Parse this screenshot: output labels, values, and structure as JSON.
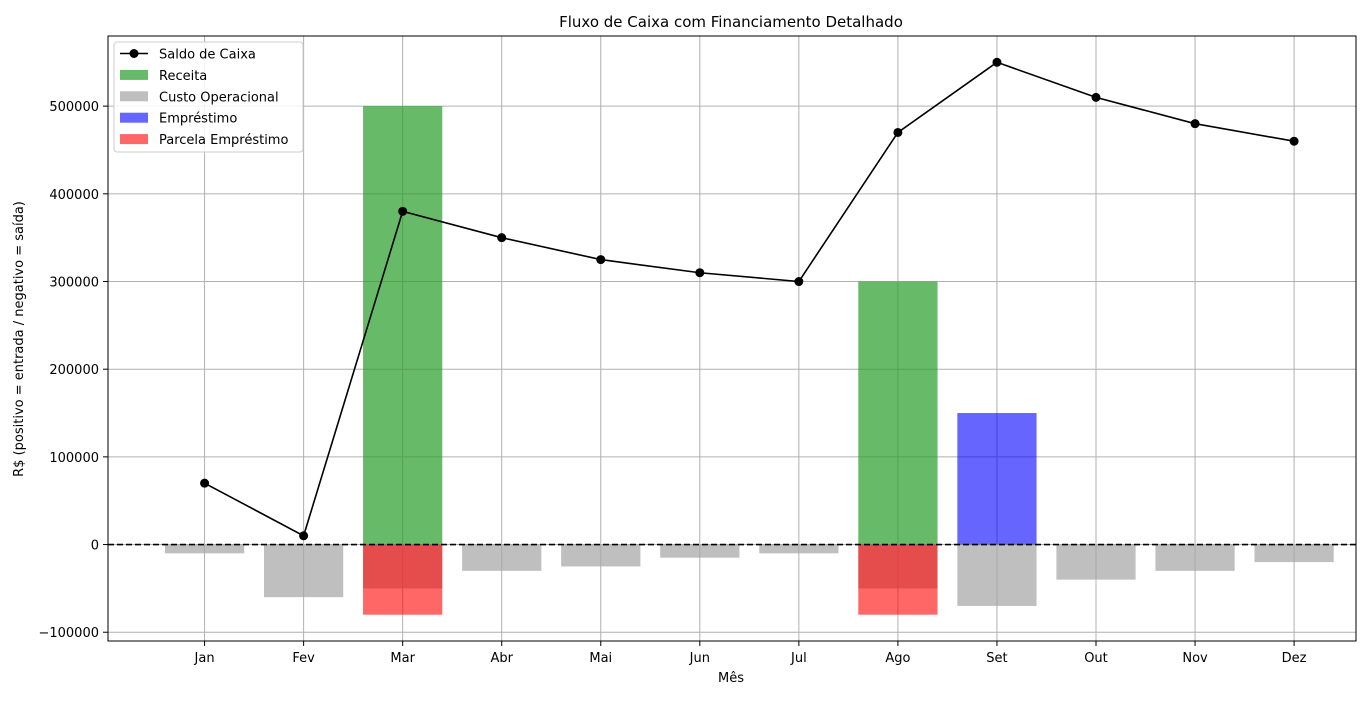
{
  "chart_data": {
    "type": "bar",
    "title": "Fluxo de Caixa com Financiamento Detalhado",
    "xlabel": "Mês",
    "ylabel": "R$ (positivo = entrada / negativo = saída)",
    "categories": [
      "Jan",
      "Fev",
      "Mar",
      "Abr",
      "Mai",
      "Jun",
      "Jul",
      "Ago",
      "Set",
      "Out",
      "Nov",
      "Dez"
    ],
    "ylim": [
      -110000,
      580000
    ],
    "yticks": [
      -100000,
      0,
      100000,
      200000,
      300000,
      400000,
      500000
    ],
    "ytick_labels": [
      "−100000",
      "0",
      "100000",
      "200000",
      "300000",
      "400000",
      "500000"
    ],
    "grid": true,
    "zero_line": "dashed",
    "legend_position": "top-left",
    "series": [
      {
        "name": "Receita",
        "kind": "bar",
        "color": "#2ca02c",
        "opacity": 0.72,
        "values": [
          0,
          0,
          500000,
          0,
          0,
          0,
          0,
          300000,
          0,
          0,
          0,
          0
        ]
      },
      {
        "name": "Custo Operacional",
        "kind": "bar",
        "color": "#a6a6a6",
        "opacity": 0.72,
        "values": [
          -10000,
          -60000,
          -50000,
          -30000,
          -25000,
          -15000,
          -10000,
          -50000,
          -70000,
          -40000,
          -30000,
          -20000
        ]
      },
      {
        "name": "Empréstimo",
        "kind": "bar",
        "color": "#0000ff",
        "opacity": 0.6,
        "values": [
          0,
          0,
          0,
          0,
          0,
          0,
          0,
          0,
          150000,
          0,
          0,
          0
        ]
      },
      {
        "name": "Parcela Empréstimo",
        "kind": "bar",
        "color": "#ff0000",
        "opacity": 0.6,
        "values": [
          0,
          0,
          -80000,
          0,
          0,
          0,
          0,
          -80000,
          0,
          0,
          0,
          0
        ]
      },
      {
        "name": "Saldo de Caixa",
        "kind": "line",
        "color": "#000000",
        "marker": "circle",
        "values": [
          70000,
          10000,
          380000,
          350000,
          325000,
          310000,
          300000,
          470000,
          550000,
          510000,
          480000,
          460000
        ]
      }
    ]
  }
}
